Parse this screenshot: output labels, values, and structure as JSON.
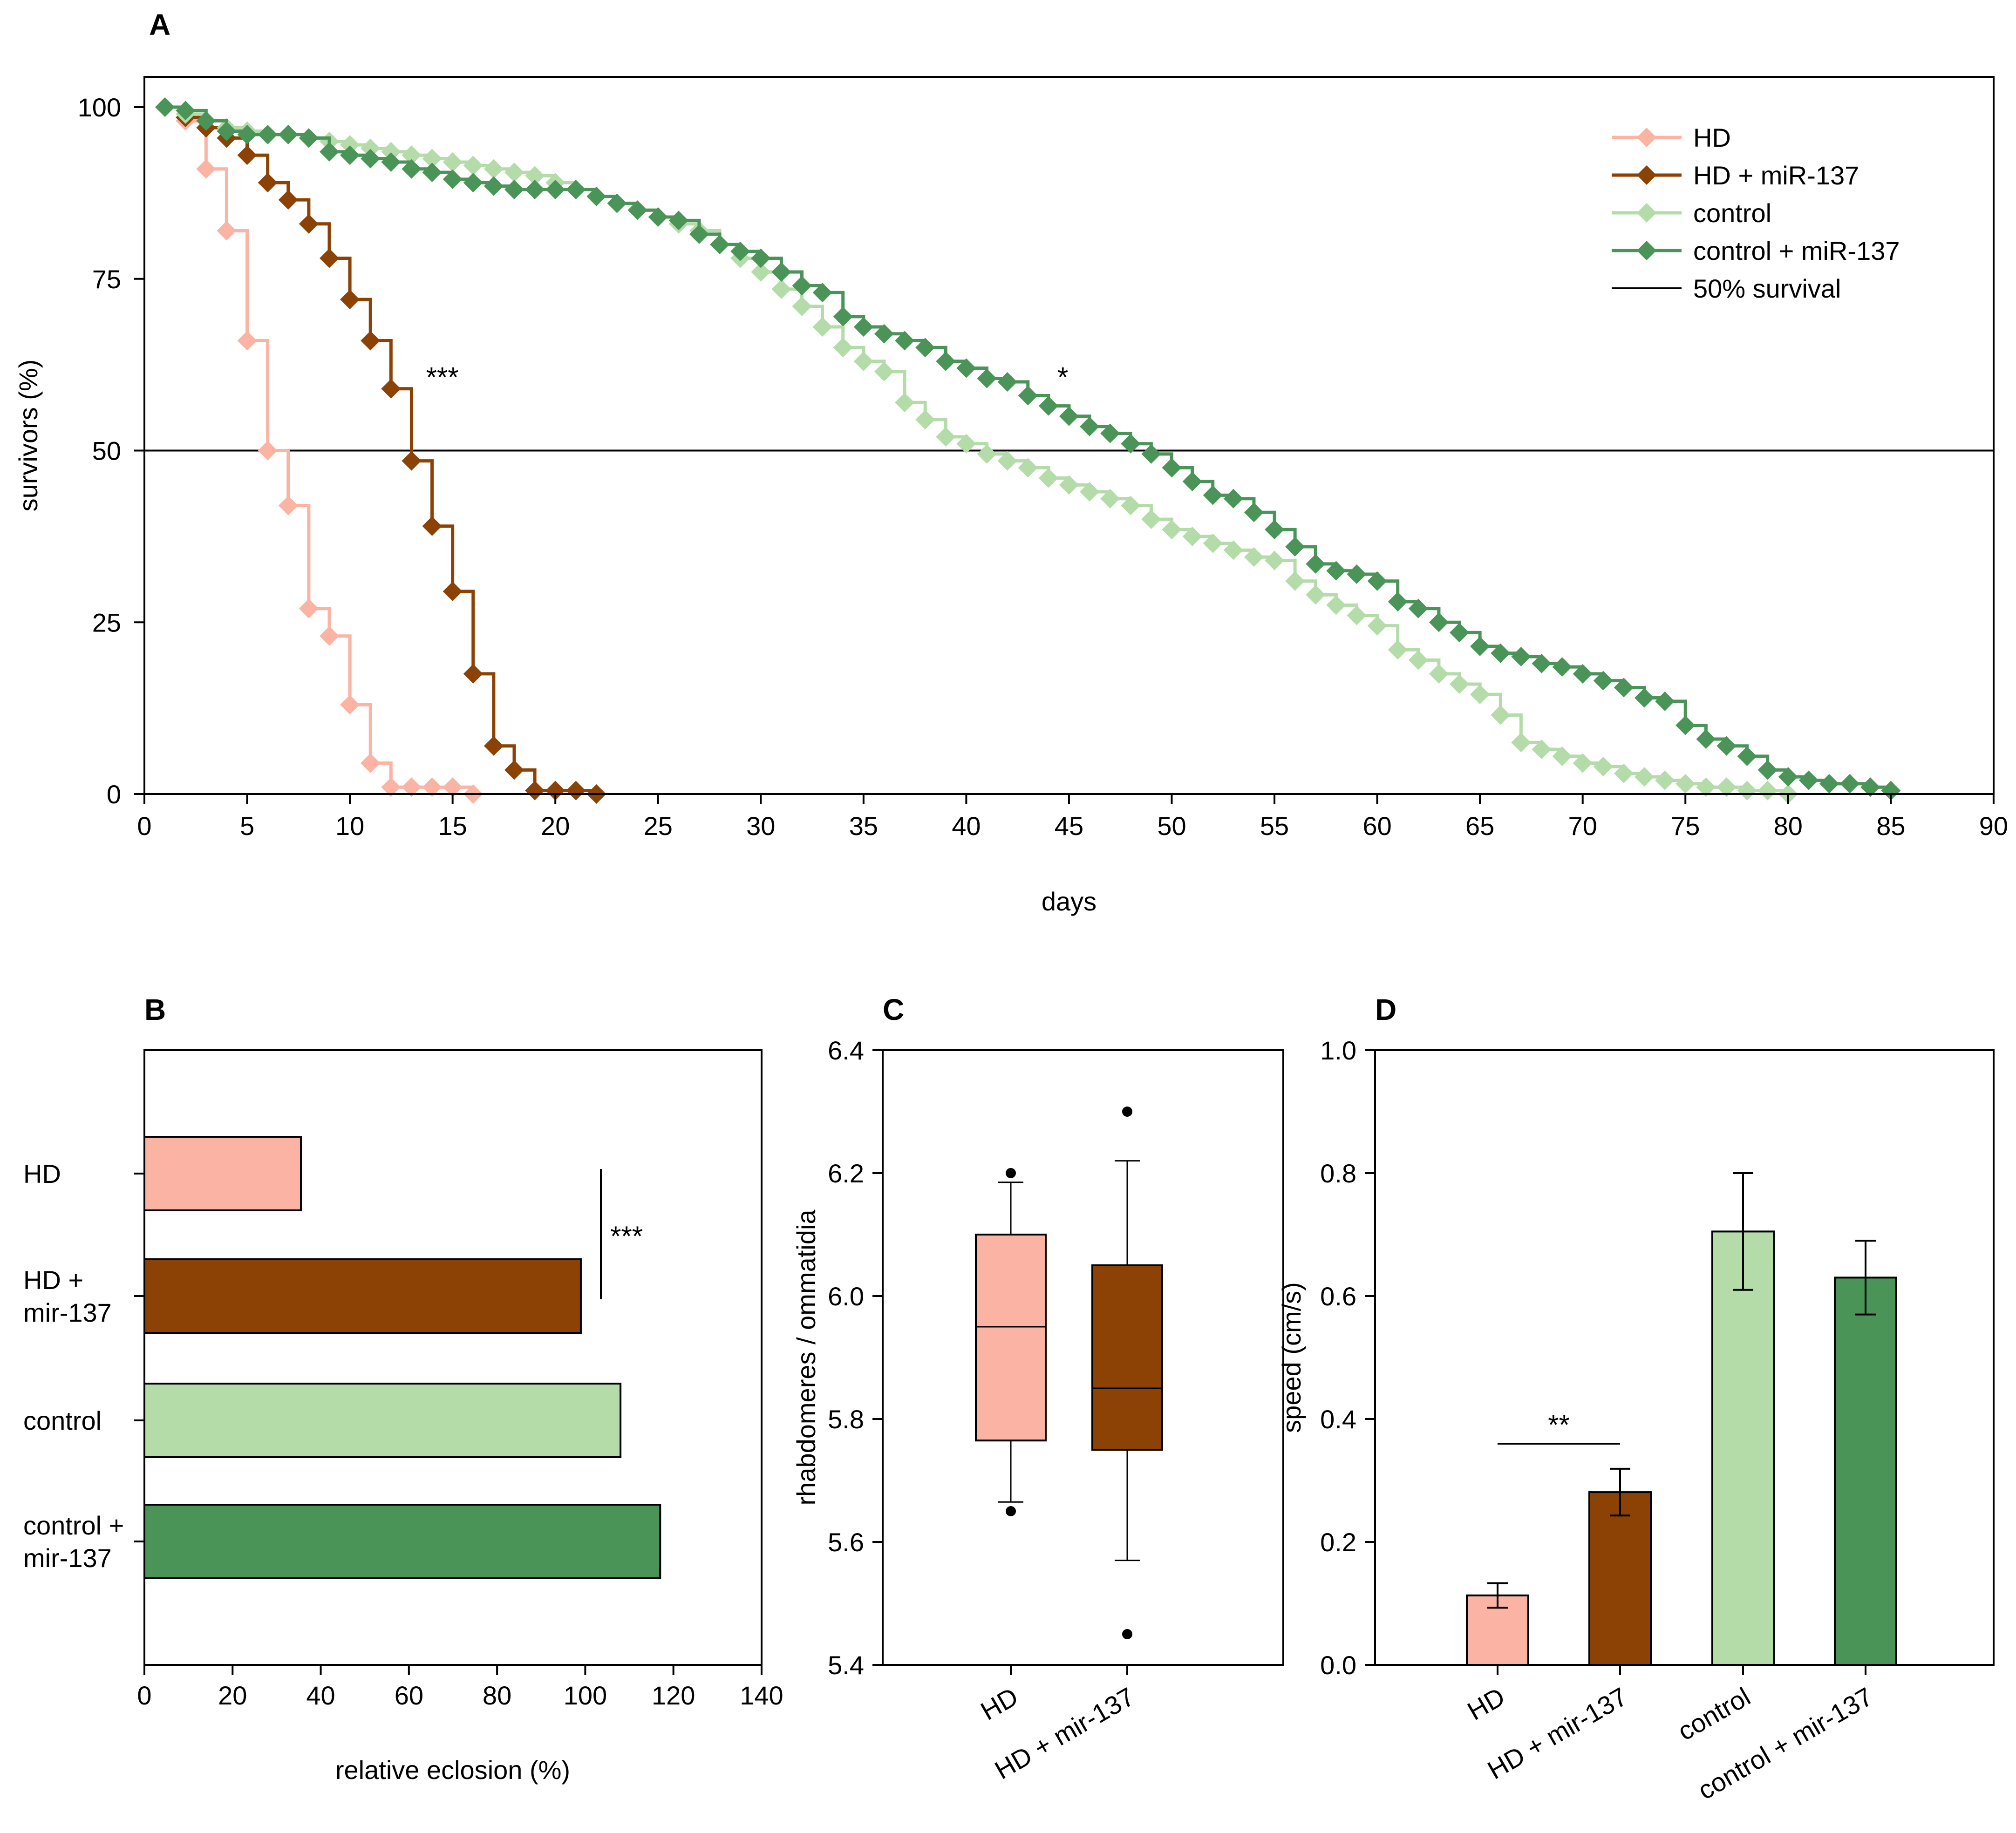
{
  "colors": {
    "hd": "#fbb4a4",
    "hd_mir": "#8b4204",
    "control": "#b4dca9",
    "control_mir": "#4a9458",
    "axis": "#000000"
  },
  "chart_data": [
    {
      "panel": "A",
      "type": "line",
      "style": "step",
      "title": "",
      "xlabel": "days",
      "ylabel": "survivors (%)",
      "xlim": [
        0,
        90
      ],
      "ylim": [
        0,
        100
      ],
      "xticks": [
        0,
        5,
        10,
        15,
        20,
        25,
        30,
        35,
        40,
        45,
        50,
        55,
        60,
        65,
        70,
        75,
        80,
        85,
        90
      ],
      "yticks": [
        0,
        25,
        50,
        75,
        100
      ],
      "legend_position": "top-right",
      "reference_line": {
        "name": "50% survival",
        "y": 50
      },
      "annotations": [
        {
          "text": "***",
          "x": 14.5,
          "y": 62
        },
        {
          "text": "*",
          "x": 44.7,
          "y": 62
        }
      ],
      "series": [
        {
          "name": "HD",
          "color_key": "hd",
          "x": [
            1,
            2,
            3,
            4,
            5,
            6,
            7,
            8,
            9,
            10,
            11,
            12,
            13,
            14,
            15,
            16
          ],
          "y": [
            100,
            98,
            91,
            82,
            66,
            50,
            42,
            27,
            23,
            13,
            4.5,
            1,
            1,
            1,
            1,
            0
          ]
        },
        {
          "name": "HD + miR-137",
          "color_key": "hd_mir",
          "x": [
            1,
            2,
            3,
            4,
            5,
            6,
            7,
            8,
            9,
            10,
            11,
            12,
            13,
            14,
            15,
            16,
            17,
            18,
            19,
            20,
            21,
            22
          ],
          "y": [
            100,
            98.5,
            97,
            95.5,
            93,
            89,
            86.5,
            83,
            78,
            72,
            66,
            59,
            48.5,
            39,
            29.5,
            17.5,
            7,
            3.5,
            0.5,
            0.5,
            0.5,
            0
          ]
        },
        {
          "name": "control",
          "color_key": "control",
          "x": [
            1,
            2,
            3,
            4,
            5,
            6,
            7,
            8,
            9,
            10,
            11,
            12,
            13,
            14,
            15,
            16,
            17,
            18,
            19,
            20,
            21,
            22,
            23,
            24,
            25,
            26,
            27,
            28,
            29,
            30,
            31,
            32,
            33,
            34,
            35,
            36,
            37,
            38,
            39,
            40,
            41,
            42,
            43,
            44,
            45,
            46,
            47,
            48,
            49,
            50,
            51,
            52,
            53,
            54,
            55,
            56,
            57,
            58,
            59,
            60,
            61,
            62,
            63,
            64,
            65,
            66,
            67,
            68,
            69,
            70,
            71,
            72,
            73,
            74,
            75,
            76,
            77,
            78,
            79,
            80
          ],
          "y": [
            100,
            99,
            98,
            97,
            96.5,
            96,
            96,
            95.5,
            95,
            94.5,
            94,
            93.5,
            93,
            92.5,
            92,
            91.5,
            91,
            90.5,
            90,
            89,
            88,
            87,
            86,
            85,
            84,
            83,
            82,
            80,
            78,
            76,
            73.5,
            71,
            68,
            65,
            63,
            61.5,
            57,
            54.5,
            52,
            51,
            49.5,
            48.5,
            47.5,
            46,
            45,
            44,
            43,
            42,
            40,
            38.5,
            37.5,
            36.5,
            35.5,
            34.5,
            34,
            31,
            29,
            27.5,
            26,
            24.5,
            21,
            19.5,
            17.5,
            16,
            14.5,
            11.5,
            7.5,
            6.5,
            5.5,
            4.5,
            4,
            3,
            2.5,
            2,
            1.5,
            1,
            1,
            0.5,
            0.5,
            0
          ]
        },
        {
          "name": "control + miR-137",
          "color_key": "control_mir",
          "x": [
            1,
            2,
            3,
            4,
            5,
            6,
            7,
            8,
            9,
            10,
            11,
            12,
            13,
            14,
            15,
            16,
            17,
            18,
            19,
            20,
            21,
            22,
            23,
            24,
            25,
            26,
            27,
            28,
            29,
            30,
            31,
            32,
            33,
            34,
            35,
            36,
            37,
            38,
            39,
            40,
            41,
            42,
            43,
            44,
            45,
            46,
            47,
            48,
            49,
            50,
            51,
            52,
            53,
            54,
            55,
            56,
            57,
            58,
            59,
            60,
            61,
            62,
            63,
            64,
            65,
            66,
            67,
            68,
            69,
            70,
            71,
            72,
            73,
            74,
            75,
            76,
            77,
            78,
            79,
            80,
            81,
            82,
            83,
            84,
            85
          ],
          "y": [
            100,
            99.5,
            98,
            96.5,
            96,
            96,
            96,
            95.5,
            93.5,
            93,
            92.5,
            92,
            91,
            90.5,
            89.5,
            89,
            88.5,
            88,
            88,
            88,
            88,
            87,
            86,
            85,
            84,
            83.5,
            81.5,
            80,
            79,
            78,
            76,
            74,
            73,
            69.5,
            68,
            67,
            66,
            65,
            63,
            62,
            60.5,
            60,
            58,
            56.5,
            55,
            53.5,
            52.5,
            51,
            49.5,
            47.5,
            45.5,
            43.5,
            43,
            41,
            38.5,
            36,
            33.5,
            32.5,
            32,
            31,
            28,
            27,
            25,
            23.5,
            21.5,
            20.5,
            20,
            19,
            18.5,
            17.5,
            16.5,
            15.5,
            14,
            13.5,
            10,
            8,
            7,
            5.5,
            3.5,
            2.5,
            2,
            1.5,
            1.5,
            1,
            0.5
          ]
        }
      ]
    },
    {
      "panel": "B",
      "type": "bar",
      "orientation": "horizontal",
      "title": "",
      "xlabel": "relative eclosion (%)",
      "ylabel": "",
      "xlim": [
        0,
        140
      ],
      "xticks": [
        0,
        20,
        40,
        60,
        80,
        100,
        120,
        140
      ],
      "categories": [
        [
          "HD"
        ],
        [
          "HD +",
          "mir-137"
        ],
        [
          "control"
        ],
        [
          "control +",
          "mir-137"
        ]
      ],
      "values": [
        35.5,
        99,
        108,
        117
      ],
      "color_keys": [
        "hd",
        "hd_mir",
        "control",
        "control_mir"
      ],
      "annotations": [
        {
          "text": "***",
          "between": [
            0,
            1
          ]
        }
      ]
    },
    {
      "panel": "C",
      "type": "box",
      "title": "",
      "xlabel": "",
      "ylabel": "rhabdomeres / ommatidia",
      "ylim": [
        5.4,
        6.4
      ],
      "yticks": [
        5.4,
        5.6,
        5.8,
        6.0,
        6.2,
        6.4
      ],
      "categories": [
        "HD",
        "HD + mir-137"
      ],
      "color_keys": [
        "hd",
        "hd_mir"
      ],
      "boxes": [
        {
          "whisker_low": 5.665,
          "q1": 5.765,
          "median": 5.95,
          "q3": 6.1,
          "whisker_high": 6.185,
          "outliers": [
            5.65,
            6.2
          ]
        },
        {
          "whisker_low": 5.57,
          "q1": 5.75,
          "median": 5.85,
          "q3": 6.05,
          "whisker_high": 6.22,
          "outliers": [
            5.45,
            6.3
          ]
        }
      ]
    },
    {
      "panel": "D",
      "type": "bar",
      "title": "",
      "xlabel": "",
      "ylabel": "speed (cm/s)",
      "ylim": [
        0,
        1.0
      ],
      "yticks": [
        0.0,
        0.2,
        0.4,
        0.6,
        0.8,
        1.0
      ],
      "categories": [
        "HD",
        "HD + mir-137",
        "control",
        "control + mir-137"
      ],
      "values": [
        0.113,
        0.281,
        0.705,
        0.63
      ],
      "errors": [
        0.02,
        0.038,
        0.095,
        0.06
      ],
      "color_keys": [
        "hd",
        "hd_mir",
        "control",
        "control_mir"
      ],
      "annotations": [
        {
          "text": "**",
          "between": [
            0,
            1
          ]
        }
      ]
    }
  ]
}
